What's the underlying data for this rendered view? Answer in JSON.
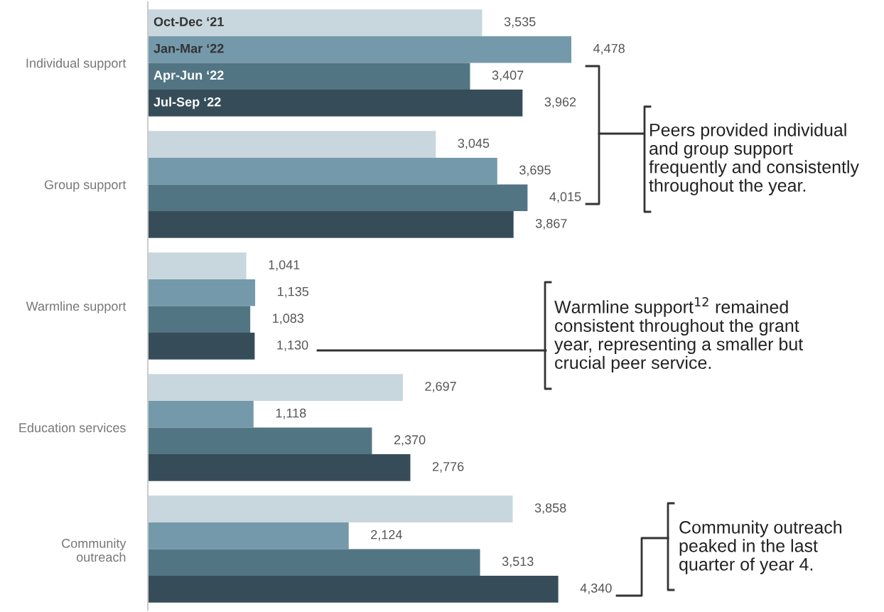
{
  "chart_data": {
    "type": "bar",
    "orientation": "horizontal",
    "categories": [
      "Individual support",
      "Group support",
      "Warmline support",
      "Education services",
      "Community\noutreach"
    ],
    "series": [
      {
        "name": "Oct-Dec ‘21",
        "color": "#c8d6de",
        "values": [
          3535,
          3045,
          1041,
          2697,
          3858
        ],
        "value_labels": [
          "3,535",
          "3,045",
          "1,041",
          "2,697",
          "3,858"
        ]
      },
      {
        "name": "Jan-Mar ‘22",
        "color": "#7499aa",
        "values": [
          4478,
          3695,
          1135,
          1118,
          2124
        ],
        "value_labels": [
          "4,478",
          "3,695",
          "1,135",
          "1,118",
          "2,124"
        ]
      },
      {
        "name": "Apr-Jun ‘22",
        "color": "#527584",
        "values": [
          3407,
          4015,
          1083,
          2370,
          3513
        ],
        "value_labels": [
          "3,407",
          "4,015",
          "1,083",
          "2,370",
          "3,513"
        ]
      },
      {
        "name": "Jul-Sep ‘22",
        "color": "#364d59",
        "values": [
          3962,
          3867,
          1130,
          2776,
          4340
        ],
        "value_labels": [
          "3,962",
          "3,867",
          "1,130",
          "2,776",
          "4,340"
        ]
      }
    ],
    "tick_labels": "y",
    "grid": false,
    "legend": false,
    "annotations": [
      "Peers provided individual\nand group support\nfrequently and consistently\nthroughout the year.",
      "Warmline support$^{12}$ remained\nconsistent throughout the grant\nyear, representing a smaller but\ncrucial peer service.",
      "Community outreach\npeaked in the last\nquarter of year 4."
    ]
  }
}
